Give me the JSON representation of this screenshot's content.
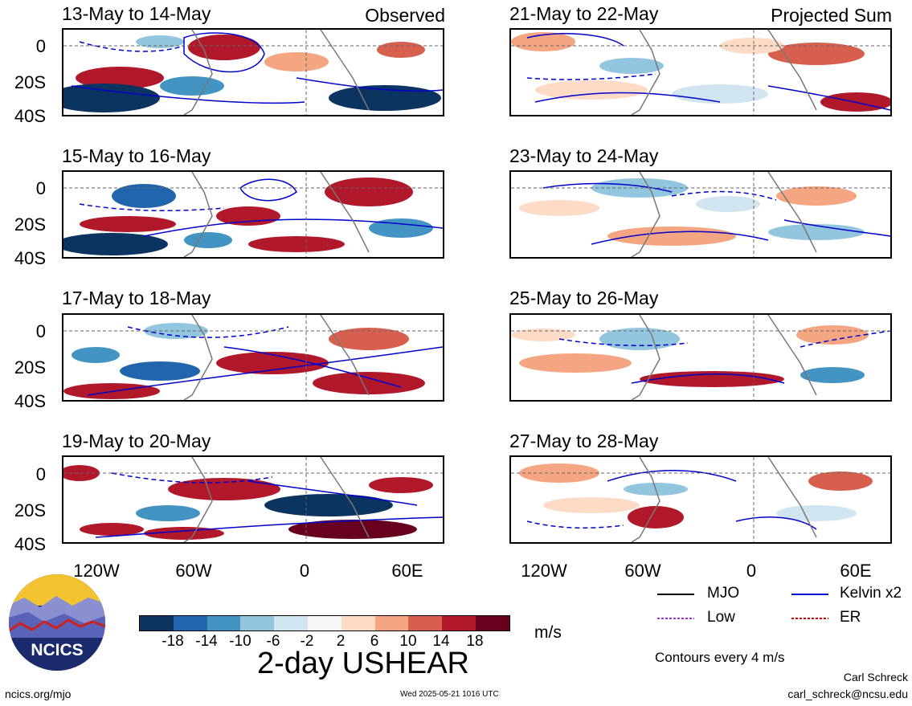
{
  "panels": {
    "left_header_tag": "Observed",
    "right_header_tag": "Projected Sum",
    "left": [
      {
        "date": "13-May to 14-May"
      },
      {
        "date": "15-May to 16-May"
      },
      {
        "date": "17-May to 18-May"
      },
      {
        "date": "19-May to 20-May"
      }
    ],
    "right": [
      {
        "date": "21-May to 22-May"
      },
      {
        "date": "23-May to 24-May"
      },
      {
        "date": "25-May to 26-May"
      },
      {
        "date": "27-May to 28-May"
      }
    ]
  },
  "lat_labels": [
    "0",
    "20S",
    "40S"
  ],
  "lon_labels": [
    "120W",
    "60W",
    "0",
    "60E"
  ],
  "colorbar": {
    "colors": [
      "#0b3461",
      "#2166ac",
      "#4393c3",
      "#92c5de",
      "#d1e5f0",
      "#f7f7f7",
      "#fddbc7",
      "#f4a582",
      "#d6604d",
      "#b2182b",
      "#67001f"
    ],
    "labels": [
      "-18",
      "-14",
      "-10",
      "-6",
      "-2",
      "2",
      "6",
      "10",
      "14",
      "18"
    ],
    "units": "m/s",
    "title": "2-day USHEAR"
  },
  "legend": {
    "mjo": "MJO",
    "kelvin": "Kelvin x2",
    "low": "Low",
    "er": "ER",
    "mjo_color": "#000000",
    "kelvin_color": "#0000cc",
    "low_color": "#9933cc",
    "er_color": "#cc0000",
    "contours_note": "Contours every 4 m/s"
  },
  "logo": {
    "text": "NCICS"
  },
  "footer": {
    "url": "ncics.org/mjo",
    "timestamp": "Wed 2025-05-21 1016 UTC",
    "author": "Carl Schreck",
    "email": "carl_schreck@ncsu.edu"
  }
}
